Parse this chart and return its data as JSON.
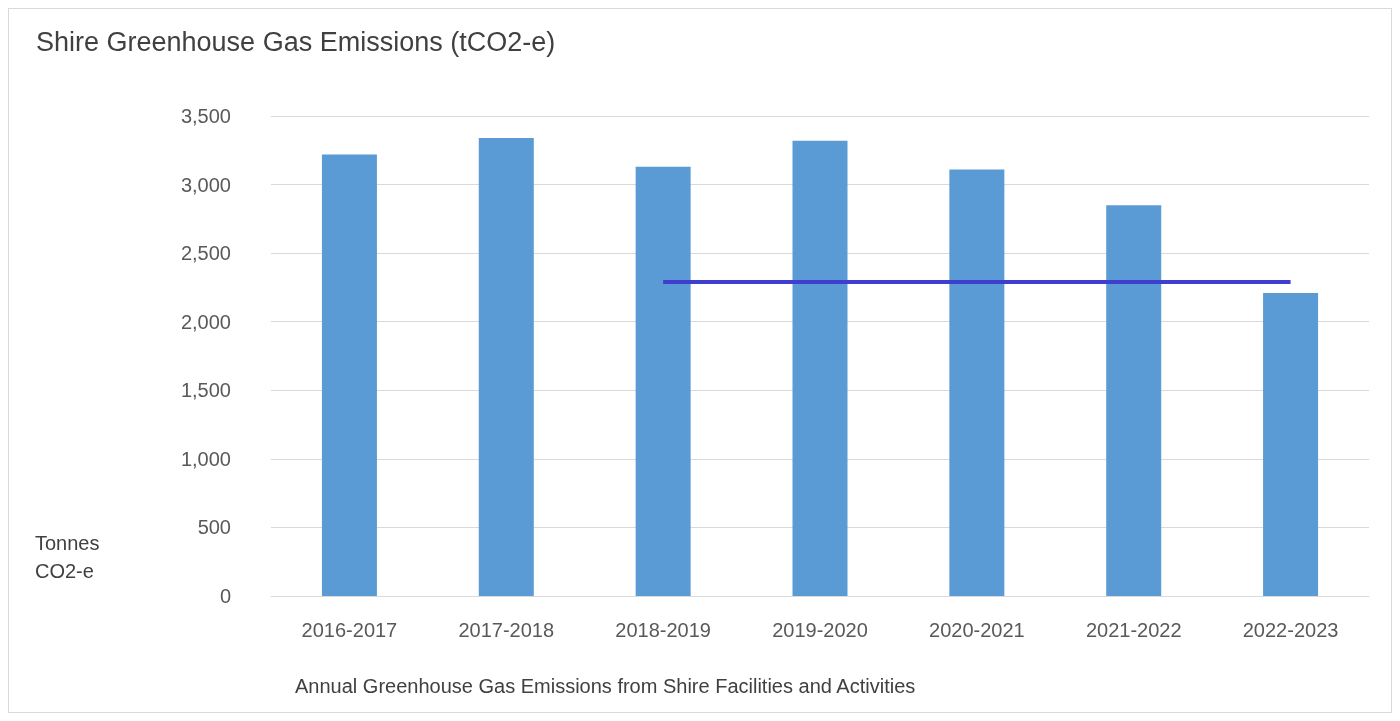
{
  "chart_data": {
    "type": "bar",
    "title": "Shire Greenhouse Gas Emissions (tCO2-e)",
    "xlabel": "Annual Greenhouse Gas Emissions from Shire Facilities and Activities",
    "ylabel": "Tonnes CO2-e",
    "categories": [
      "2016-2017",
      "2017-2018",
      "2018-2019",
      "2019-2020",
      "2020-2021",
      "2021-2022",
      "2022-2023"
    ],
    "series": [
      {
        "color": "#5b9bd5",
        "values": [
          3220,
          3340,
          3130,
          3320,
          3110,
          2850,
          2210
        ]
      },
      {
        "type": "line",
        "color": "#3f3fcf",
        "values": [
          null,
          null,
          2290,
          2290,
          2290,
          2290,
          2290
        ]
      }
    ],
    "ylim": [
      0,
      3500
    ],
    "yticks": [
      {
        "value": 0,
        "label": "0"
      },
      {
        "value": 500,
        "label": "500"
      },
      {
        "value": 1000,
        "label": "1,000"
      },
      {
        "value": 1500,
        "label": "1,500"
      },
      {
        "value": 2000,
        "label": "2,000"
      },
      {
        "value": 2500,
        "label": "2,500"
      },
      {
        "value": 3000,
        "label": "3,000"
      },
      {
        "value": 3500,
        "label": "3,500"
      }
    ],
    "grid": "y",
    "marker": "none",
    "line_style": "solid"
  }
}
